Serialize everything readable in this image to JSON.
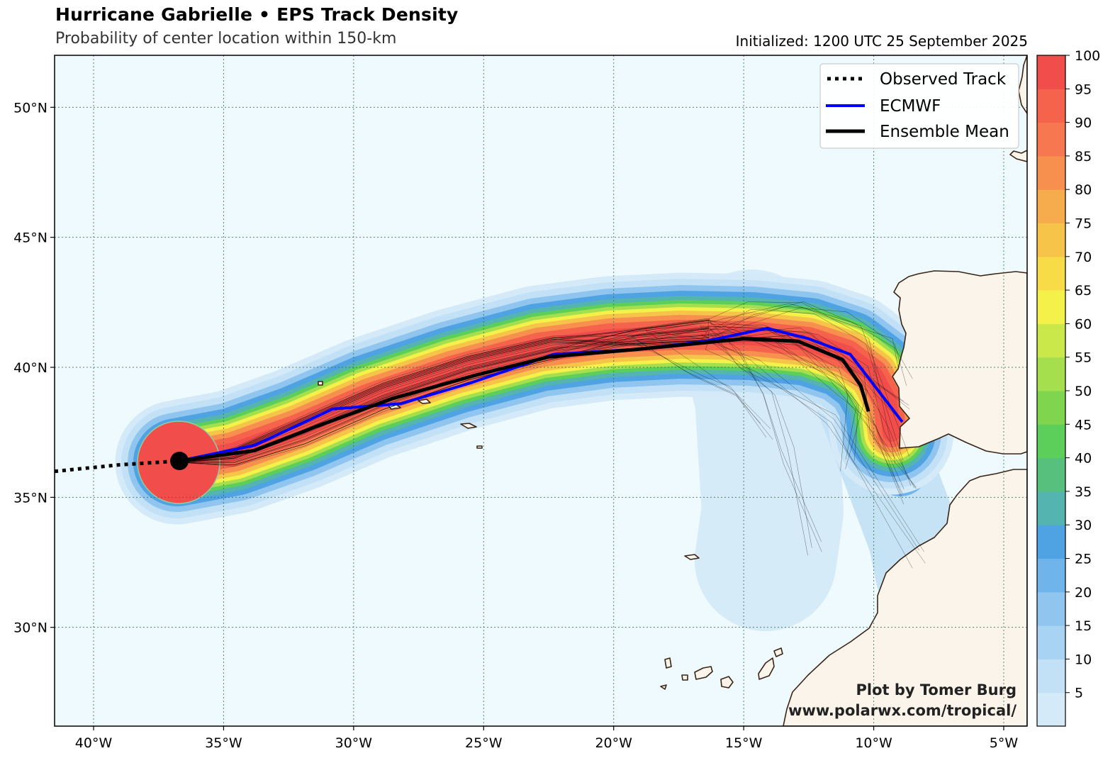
{
  "header": {
    "title": "Hurricane Gabrielle • EPS Track Density",
    "subtitle": "Probability of center location within 150-km",
    "initialized": "Initialized: 1200 UTC 25 September 2025"
  },
  "map": {
    "lon_range": [
      -41.5,
      -4.1
    ],
    "lat_range": [
      26.2,
      52.0
    ],
    "lon_ticks": [
      {
        "v": -40,
        "label": "40°W"
      },
      {
        "v": -35,
        "label": "35°W"
      },
      {
        "v": -30,
        "label": "30°W"
      },
      {
        "v": -25,
        "label": "25°W"
      },
      {
        "v": -20,
        "label": "20°W"
      },
      {
        "v": -15,
        "label": "15°W"
      },
      {
        "v": -10,
        "label": "10°W"
      },
      {
        "v": -5,
        "label": "5°W"
      }
    ],
    "lat_ticks": [
      {
        "v": 30,
        "label": "30°N"
      },
      {
        "v": 35,
        "label": "35°N"
      },
      {
        "v": 40,
        "label": "40°N"
      },
      {
        "v": 45,
        "label": "45°N"
      },
      {
        "v": 50,
        "label": "50°N"
      }
    ],
    "colors": {
      "ocean": "#eefafd",
      "land": "#fbf4ea",
      "coast": "#3a2416",
      "grid": "#2e6b4a",
      "ecmwf": "#0000ff",
      "mean": "#000000"
    }
  },
  "legend": {
    "position": "top-right",
    "items": [
      {
        "label": "Observed Track",
        "style": "dotted",
        "color": "#000000"
      },
      {
        "label": "ECMWF",
        "style": "solid",
        "color": "#0000ff"
      },
      {
        "label": "Ensemble Mean",
        "style": "solid-thick",
        "color": "#000000"
      }
    ]
  },
  "colorbar": {
    "ticks": [
      "5",
      "10",
      "15",
      "20",
      "25",
      "30",
      "35",
      "40",
      "45",
      "50",
      "55",
      "60",
      "65",
      "70",
      "75",
      "80",
      "85",
      "90",
      "95",
      "100"
    ],
    "colors": [
      "#d4eaf8",
      "#c3e1f6",
      "#a9d3f2",
      "#8fc5ee",
      "#6fb4ea",
      "#4fa3e2",
      "#54b4b0",
      "#56c07c",
      "#5ccf5a",
      "#7fd64e",
      "#a6df4e",
      "#cbe84a",
      "#f4f24a",
      "#f7dc48",
      "#f6c449",
      "#f6ac4c",
      "#f7904e",
      "#f77850",
      "#f5634d",
      "#f04d4b"
    ]
  },
  "tracks": {
    "observed": [
      [
        -41.5,
        36.0
      ],
      [
        -39,
        36.25
      ],
      [
        -36.7,
        36.4
      ]
    ],
    "ecmwf": [
      [
        -36.7,
        36.4
      ],
      [
        -33.8,
        37.0
      ],
      [
        -30.8,
        38.4
      ],
      [
        -28.2,
        38.6
      ],
      [
        -25.5,
        39.4
      ],
      [
        -22.3,
        40.5
      ],
      [
        -19,
        40.7
      ],
      [
        -16.5,
        41.0
      ],
      [
        -14.1,
        41.5
      ],
      [
        -12.5,
        41.1
      ],
      [
        -10.9,
        40.5
      ],
      [
        -8.9,
        37.9
      ]
    ],
    "ensemble_mean": [
      [
        -36.7,
        36.4
      ],
      [
        -33.8,
        36.8
      ],
      [
        -31.5,
        37.7
      ],
      [
        -28.5,
        38.8
      ],
      [
        -25.3,
        39.7
      ],
      [
        -22.5,
        40.4
      ],
      [
        -19,
        40.7
      ],
      [
        -16.5,
        40.95
      ],
      [
        -15,
        41.1
      ],
      [
        -12.9,
        41.0
      ],
      [
        -11.2,
        40.3
      ],
      [
        -10.5,
        39.3
      ],
      [
        -10.2,
        38.3
      ]
    ],
    "storm_position": [
      -36.7,
      36.4
    ]
  },
  "credit": {
    "line1": "Plot by Tomer Burg",
    "line2": "www.polarwx.com/tropical/"
  }
}
